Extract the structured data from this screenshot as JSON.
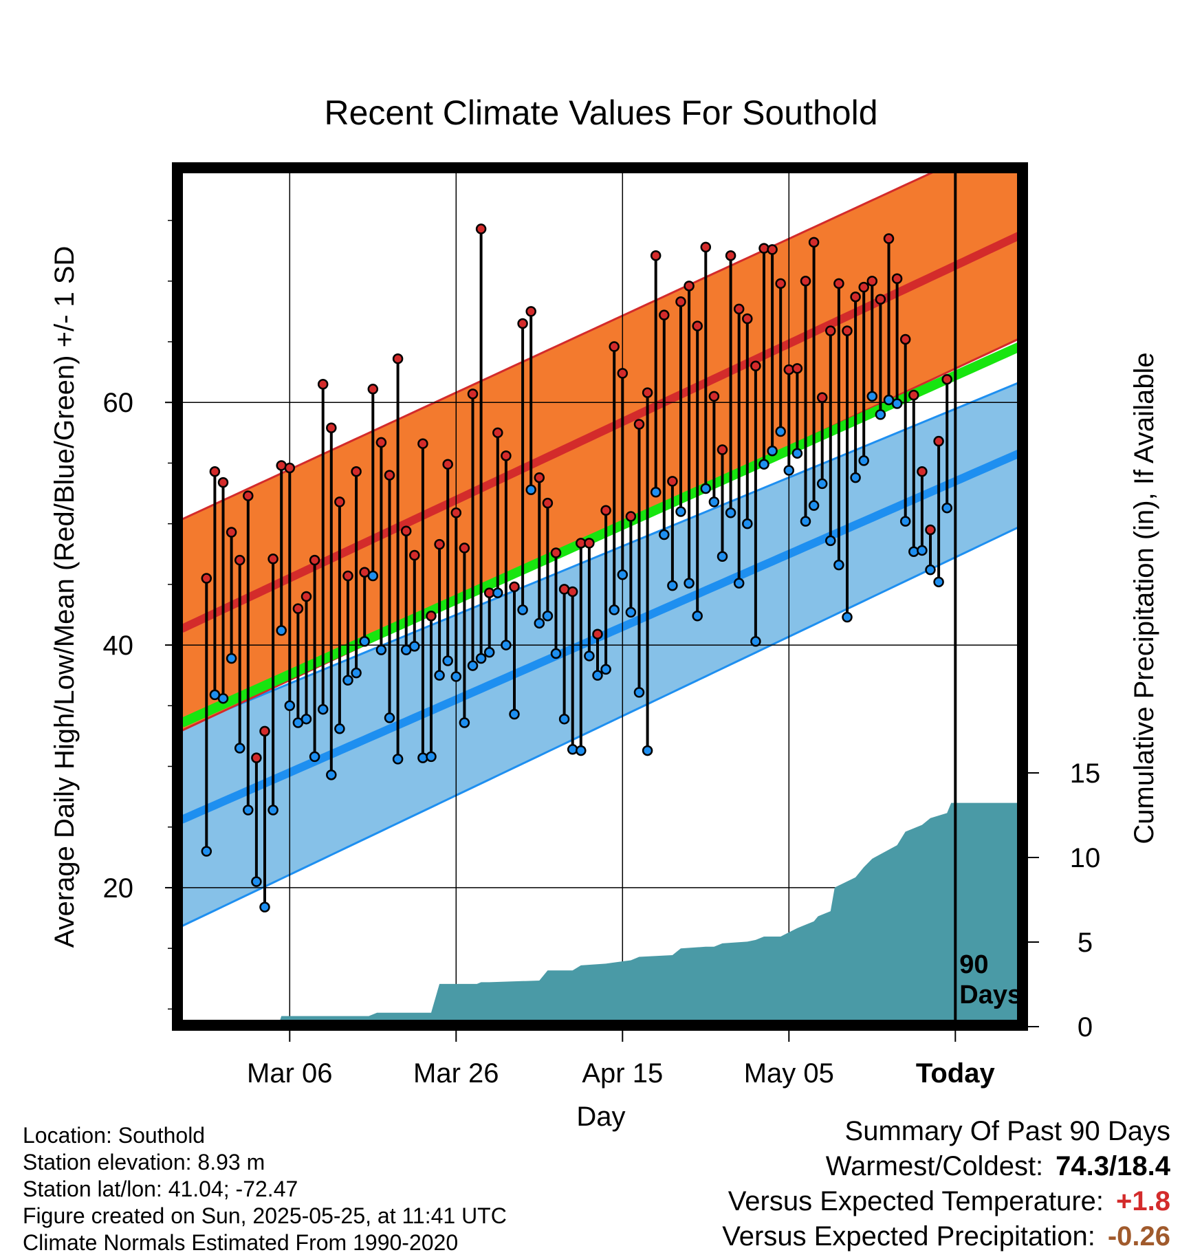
{
  "chart_data": {
    "type": "line",
    "title": "Recent Climate Values For Southold",
    "xlabel": "Day",
    "ylabel_left": "Average Daily High/Low/Mean (Red/Blue/Green) +/- 1 SD",
    "ylabel_right": "Cumulative Precipitation (in), If Available",
    "x_tick_labels": [
      "Mar 06",
      "Mar 26",
      "Apr 15",
      "May 05",
      "Today"
    ],
    "x_tick_days": [
      10,
      30,
      50,
      70,
      90
    ],
    "ylim_left": [
      9,
      79
    ],
    "y_ticks_left": [
      20,
      40,
      60
    ],
    "y_ticks_right": [
      0,
      5,
      10,
      15
    ],
    "grid": true,
    "today_marker": "90 Days",
    "normal_high": {
      "x": [
        0,
        100
      ],
      "y": [
        42.3,
        74.5
      ]
    },
    "normal_high_band": {
      "x": [
        0,
        100
      ],
      "lower": [
        33.9,
        66.0
      ],
      "upper": [
        51.3,
        83.0
      ]
    },
    "normal_mean": {
      "x": [
        0,
        100
      ],
      "y": [
        34.5,
        65.3
      ]
    },
    "normal_low": {
      "x": [
        0,
        100
      ],
      "y": [
        26.5,
        56.5
      ]
    },
    "normal_low_band": {
      "x": [
        0,
        100
      ],
      "lower": [
        17.8,
        50.5
      ],
      "upper": [
        34.0,
        62.3
      ]
    },
    "daily_high": [
      45.5,
      54.3,
      53.4,
      49.3,
      47.0,
      52.3,
      30.7,
      32.9,
      47.1,
      54.8,
      54.6,
      43.0,
      44.0,
      47.0,
      61.5,
      57.9,
      51.8,
      45.7,
      54.3,
      46.0,
      61.1,
      56.7,
      54.0,
      63.6,
      49.4,
      47.4,
      56.6,
      42.4,
      48.3,
      54.9,
      50.9,
      48.0,
      60.7,
      74.3,
      44.3,
      57.5,
      55.6,
      44.8,
      66.5,
      67.5,
      53.8,
      51.7,
      47.6,
      44.6,
      44.4,
      48.4,
      48.4,
      40.9,
      51.1,
      64.6,
      62.4,
      50.6,
      58.2,
      60.8,
      72.1,
      67.2,
      53.5,
      68.3,
      69.6,
      66.3,
      72.8,
      60.5,
      56.1,
      72.1,
      67.7,
      66.9,
      63.0,
      72.7,
      72.6,
      69.8,
      62.7,
      62.8,
      70.0,
      73.2,
      60.4,
      65.9,
      69.8,
      65.9,
      68.7,
      69.5,
      70.0,
      68.5,
      73.5,
      70.2,
      65.2,
      60.6,
      54.3,
      49.5,
      56.8,
      61.9
    ],
    "daily_low": [
      23.0,
      35.9,
      35.6,
      38.9,
      31.5,
      26.4,
      20.5,
      18.4,
      26.4,
      41.2,
      35.0,
      33.6,
      33.9,
      30.8,
      34.7,
      29.3,
      33.1,
      37.1,
      37.7,
      40.3,
      45.7,
      39.6,
      34.0,
      30.6,
      39.6,
      39.9,
      30.7,
      30.8,
      37.5,
      38.7,
      37.4,
      33.6,
      38.3,
      38.9,
      39.4,
      44.3,
      40.0,
      34.3,
      42.9,
      52.8,
      41.8,
      42.4,
      39.3,
      33.9,
      31.4,
      31.3,
      39.1,
      37.5,
      38.0,
      42.9,
      45.8,
      42.7,
      36.1,
      31.3,
      52.6,
      49.1,
      44.9,
      51.0,
      45.1,
      42.4,
      52.9,
      51.8,
      47.3,
      50.9,
      45.1,
      50.0,
      40.3,
      54.9,
      56.0,
      57.6,
      54.4,
      55.8,
      50.2,
      51.5,
      53.3,
      48.6,
      46.6,
      42.3,
      53.8,
      55.2,
      60.5,
      59.0,
      60.2,
      59.9,
      50.2,
      47.7,
      47.8,
      46.2,
      45.2,
      51.3
    ],
    "cumulative_precip": {
      "x": [
        0,
        8.8,
        9,
        19.5,
        20.5,
        27,
        28,
        32.5,
        33,
        34,
        40,
        41,
        44,
        45,
        48,
        51,
        52,
        56,
        57,
        60,
        61,
        62,
        65,
        66,
        67,
        69,
        71,
        71.5,
        73,
        73.5,
        75,
        75.5,
        78,
        79,
        80,
        83,
        84,
        86,
        87,
        89,
        89.5,
        90,
        100
      ],
      "y": [
        0,
        0,
        0.3,
        0.3,
        0.5,
        0.5,
        2.2,
        2.2,
        2.3,
        2.3,
        2.4,
        3.0,
        3.0,
        3.3,
        3.4,
        3.6,
        3.8,
        3.9,
        4.3,
        4.4,
        4.4,
        4.6,
        4.7,
        4.8,
        5.0,
        5.0,
        5.5,
        5.6,
        5.9,
        6.2,
        6.5,
        7.9,
        8.5,
        9.1,
        9.6,
        10.4,
        11.2,
        11.6,
        12.0,
        12.3,
        12.9,
        12.9,
        12.9
      ]
    }
  },
  "info": {
    "location": "Location: Southold",
    "elevation": "Station elevation: 8.93 m",
    "latlon": "Station lat/lon: 41.04; -72.47",
    "created": "Figure created on Sun, 2025-05-25, at 11:41 UTC",
    "normals": "Climate Normals Estimated From 1990-2020"
  },
  "summary": {
    "heading": "Summary Of Past 90 Days",
    "warm_cold_label": "Warmest/Coldest:",
    "warm_cold_value": "74.3/18.4",
    "temp_label": "Versus Expected Temperature:",
    "temp_value": "+1.8",
    "precip_label": "Versus Expected Precipitation:",
    "precip_value": "-0.26"
  },
  "colors": {
    "high_band": "#f37a2e",
    "high_mean": "#d32b2b",
    "low_band": "#86c1e8",
    "low_mean": "#1e8ff0",
    "mean_line": "#17e50f",
    "precip": "#4a9aa6",
    "high_marker": "#d32b2b",
    "low_marker": "#1e8ff0",
    "temp_anomaly": "#d32b2b",
    "precip_anomaly": "#a05a2c"
  }
}
